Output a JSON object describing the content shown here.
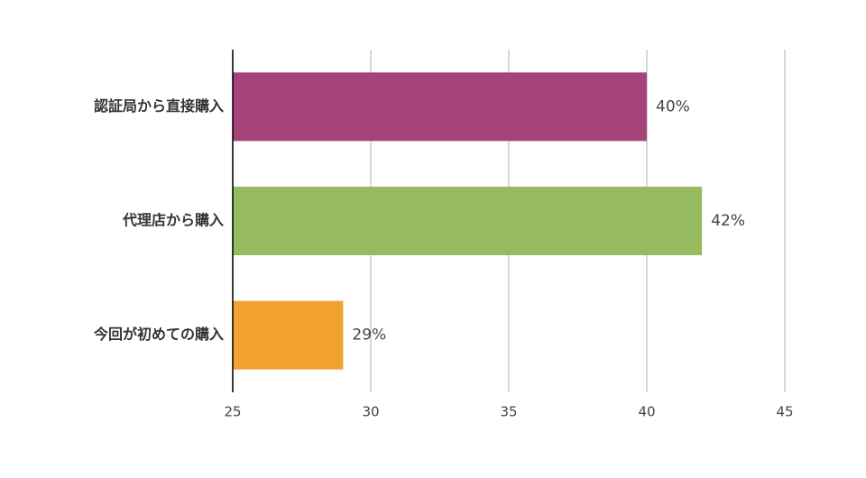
{
  "chart_data": {
    "type": "hbar",
    "categories": [
      "認証局から直接購入",
      "代理店から購入",
      "今回が初めての購入"
    ],
    "values": [
      40,
      42,
      29
    ],
    "value_labels": [
      "40%",
      "42%",
      "29%"
    ],
    "colors": [
      "#a5447a",
      "#97bb5f",
      "#f2a230"
    ],
    "xlim": [
      25,
      45
    ],
    "xticks": [
      25,
      30,
      35,
      40,
      45
    ],
    "grid": true
  }
}
